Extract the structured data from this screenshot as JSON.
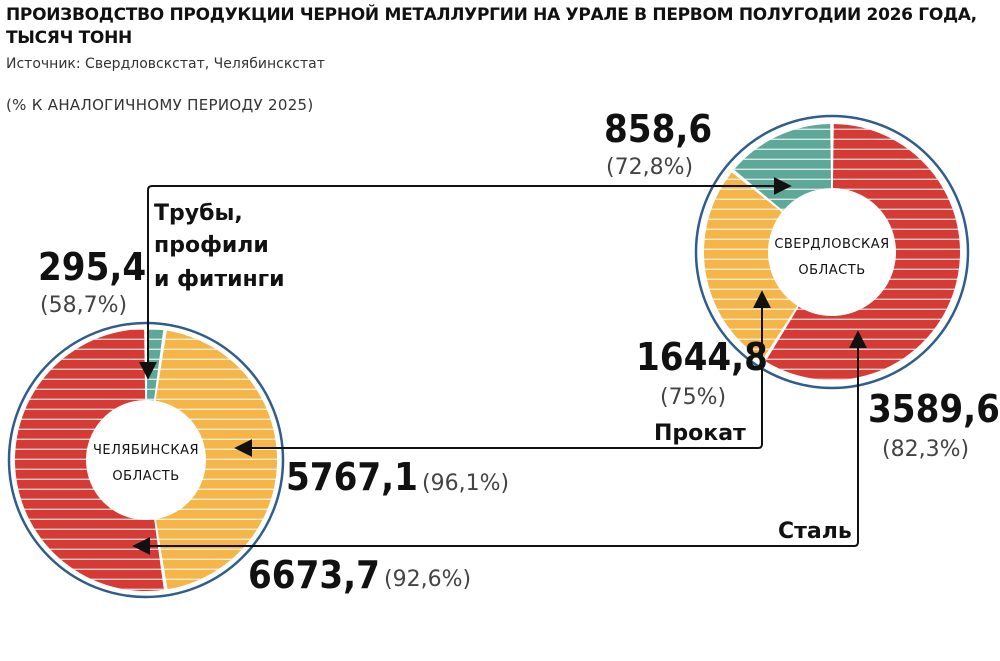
{
  "header": {
    "title": "ПРОИЗВОДСТВО ПРОДУКЦИИ ЧЕРНОЙ МЕТАЛЛУРГИИ НА УРАЛЕ В ПЕРВОМ ПОЛУГОДИИ 2026 ГОДА, ТЫСЯЧ ТОНН",
    "source": "Источник: Свердловскстат, Челябинскстат",
    "note": "(% К АНАЛОГИЧНОМУ ПЕРИОДУ 2025)"
  },
  "colors": {
    "steel": "#d63a35",
    "rolled": "#f5b548",
    "pipes": "#5ea89a",
    "ring": "#2f5d8c",
    "arrow": "#111111"
  },
  "chart_data": [
    {
      "type": "pie",
      "region": "ЧЕЛЯБИНСКАЯ ОБЛАСТЬ",
      "region_lines": [
        "ЧЕЛЯБИНСКАЯ",
        "ОБЛАСТЬ"
      ],
      "series": [
        {
          "key": "pipes",
          "name": "Трубы, профили и фитинги",
          "value": 295.4,
          "value_label": "295,4",
          "pct_label": "(58,7%)"
        },
        {
          "key": "rolled",
          "name": "Прокат",
          "value": 5767.1,
          "value_label": "5767,1",
          "pct_label": "(96,1%)"
        },
        {
          "key": "steel",
          "name": "Сталь",
          "value": 6673.7,
          "value_label": "6673,7",
          "pct_label": "(92,6%)"
        }
      ]
    },
    {
      "type": "pie",
      "region": "СВЕРДЛОВСКАЯ ОБЛАСТЬ",
      "region_lines": [
        "СВЕРДЛОВСКАЯ",
        "ОБЛАСТЬ"
      ],
      "series": [
        {
          "key": "steel",
          "name": "Сталь",
          "value": 3589.6,
          "value_label": "3589,6",
          "pct_label": "(82,3%)"
        },
        {
          "key": "rolled",
          "name": "Прокат",
          "value": 1644.8,
          "value_label": "1644,8",
          "pct_label": "(75%)"
        },
        {
          "key": "pipes",
          "name": "Трубы, профили и фитинги",
          "value": 858.6,
          "value_label": "858,6",
          "pct_label": "(72,8%)"
        }
      ]
    }
  ],
  "flow_labels": {
    "pipes_lines": [
      "Трубы,",
      "профили",
      "и фитинги"
    ],
    "rolled": "Прокат",
    "steel": "Сталь"
  }
}
